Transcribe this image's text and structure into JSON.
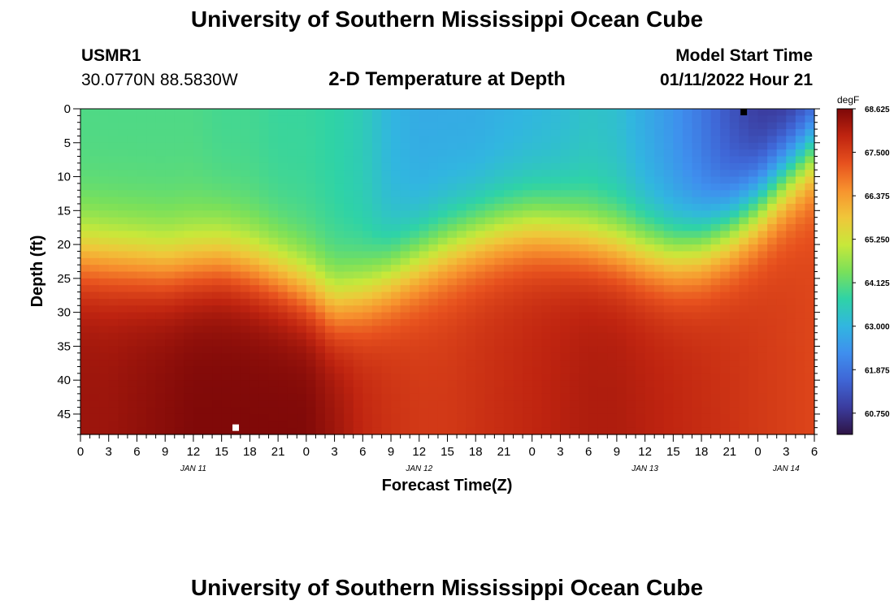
{
  "page_title": "University of Southern Mississippi Ocean Cube",
  "footer_title": "University of Southern Mississippi Ocean Cube",
  "station": {
    "id": "USMR1",
    "coords": "30.0770N  88.5830W"
  },
  "model_start": {
    "label": "Model Start Time",
    "value": "01/11/2022 Hour 21"
  },
  "chart_data": {
    "type": "heatmap",
    "title": "2-D Temperature at Depth",
    "xlabel": "Forecast Time(Z)",
    "ylabel": "Depth (ft)",
    "x_hours_range": [
      0,
      78
    ],
    "x_tick_labels": [
      "0",
      "3",
      "6",
      "9",
      "12",
      "15",
      "18",
      "21",
      "0",
      "3",
      "6",
      "9",
      "12",
      "15",
      "18",
      "21",
      "0",
      "3",
      "6",
      "9",
      "12",
      "15",
      "18",
      "21",
      "0",
      "3",
      "6"
    ],
    "date_labels": [
      {
        "label": "JAN 11",
        "hour": 12
      },
      {
        "label": "JAN 12",
        "hour": 36
      },
      {
        "label": "JAN 13",
        "hour": 60
      },
      {
        "label": "JAN 14",
        "hour": 75
      }
    ],
    "ylim": [
      0,
      48
    ],
    "y_tick_labels": [
      "0",
      "5",
      "10",
      "15",
      "20",
      "25",
      "30",
      "35",
      "40",
      "45"
    ],
    "y_ticks": [
      0,
      5,
      10,
      15,
      20,
      25,
      30,
      35,
      40,
      45
    ],
    "colorbar": {
      "unit": "degF",
      "min": 60.2,
      "max": 68.625,
      "tick_labels": [
        "68.625",
        "67.500",
        "66.375",
        "65.250",
        "64.125",
        "63.000",
        "61.875",
        "60.750"
      ],
      "tick_values": [
        68.625,
        67.5,
        66.375,
        65.25,
        64.125,
        63.0,
        61.875,
        60.75
      ],
      "colors": [
        "#2e1445",
        "#3b3c9e",
        "#3f66d6",
        "#3f8fee",
        "#31b6e0",
        "#2fd3a6",
        "#7ae05a",
        "#c8e83a",
        "#f0c63a",
        "#f7922e",
        "#e7511e",
        "#bf2410",
        "#7d0808"
      ]
    },
    "thermocline_profile": {
      "hours": [
        0,
        3,
        6,
        9,
        12,
        15,
        18,
        21,
        24,
        27,
        30,
        33,
        36,
        39,
        42,
        45,
        48,
        51,
        54,
        57,
        60,
        63,
        66,
        69,
        72,
        75,
        78
      ],
      "depth_ft": [
        21.5,
        22.0,
        22.5,
        23.0,
        22.5,
        22.0,
        23.0,
        24.5,
        26.5,
        29.0,
        27.5,
        25.0,
        22.5,
        20.5,
        19.0,
        18.0,
        17.5,
        18.0,
        19.0,
        20.0,
        21.0,
        21.5,
        20.5,
        18.0,
        14.5,
        10.0,
        6.0
      ],
      "surface_degF": [
        64.0,
        64.0,
        64.0,
        64.0,
        64.0,
        63.9,
        63.9,
        63.8,
        63.8,
        63.7,
        63.5,
        63.0,
        62.8,
        62.8,
        62.8,
        62.9,
        63.0,
        63.1,
        63.3,
        63.2,
        62.8,
        62.4,
        61.9,
        61.3,
        60.8,
        60.6,
        60.8
      ],
      "bottom_degF": [
        68.3,
        68.3,
        68.4,
        68.5,
        68.6,
        68.6,
        68.6,
        68.6,
        68.6,
        68.3,
        67.9,
        67.7,
        67.6,
        67.6,
        67.7,
        67.8,
        67.9,
        68.0,
        68.1,
        68.1,
        68.0,
        67.9,
        67.8,
        67.7,
        67.6,
        67.5,
        67.4
      ]
    },
    "markers": [
      {
        "hour": 16.5,
        "depth_ft": 47,
        "color": "#ffffff"
      },
      {
        "hour": 70.5,
        "depth_ft": 0,
        "color": "#000000"
      }
    ],
    "grid": false
  }
}
